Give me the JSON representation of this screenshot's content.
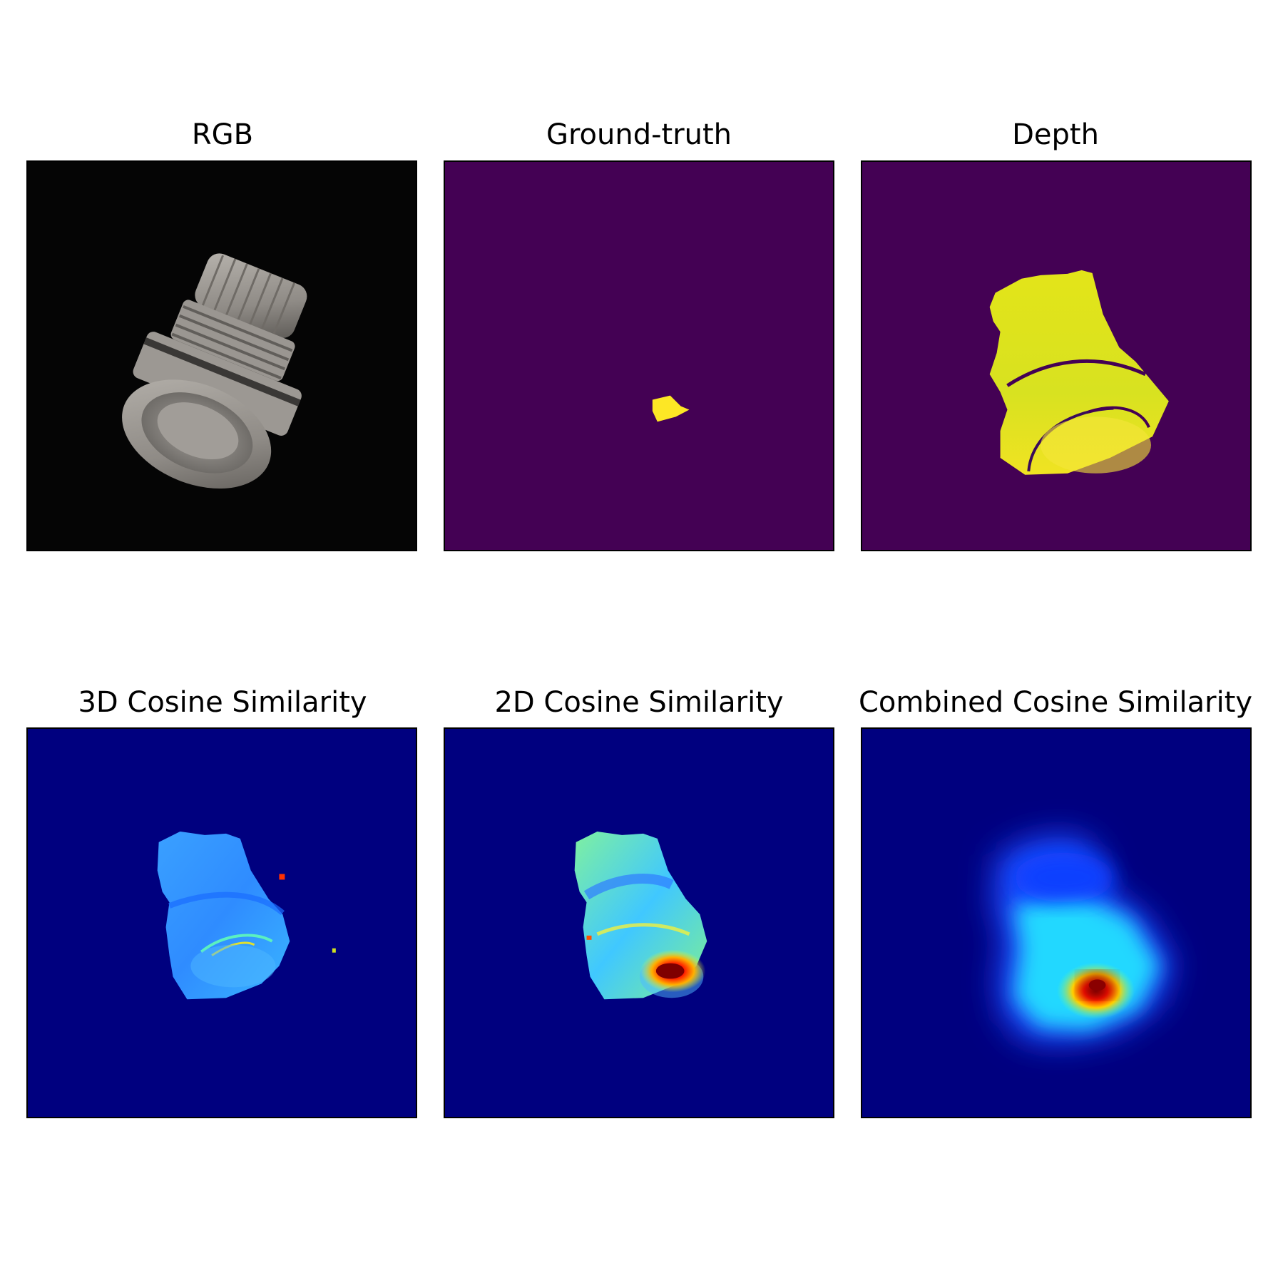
{
  "figure": {
    "panels": [
      {
        "title": "RGB",
        "kind": "rgb-image",
        "background": "#050505"
      },
      {
        "title": "Ground-truth",
        "kind": "mask",
        "background": "#440154",
        "foreground": "#fde725"
      },
      {
        "title": "Depth",
        "kind": "depth-map",
        "background": "#440154",
        "foreground": "#e8e41f"
      },
      {
        "title": "3D Cosine Similarity",
        "kind": "heatmap",
        "background": "#00007f"
      },
      {
        "title": "2D Cosine Similarity",
        "kind": "heatmap",
        "background": "#00007f"
      },
      {
        "title": "Combined Cosine Similarity",
        "kind": "heatmap",
        "background": "#00007f"
      }
    ]
  }
}
